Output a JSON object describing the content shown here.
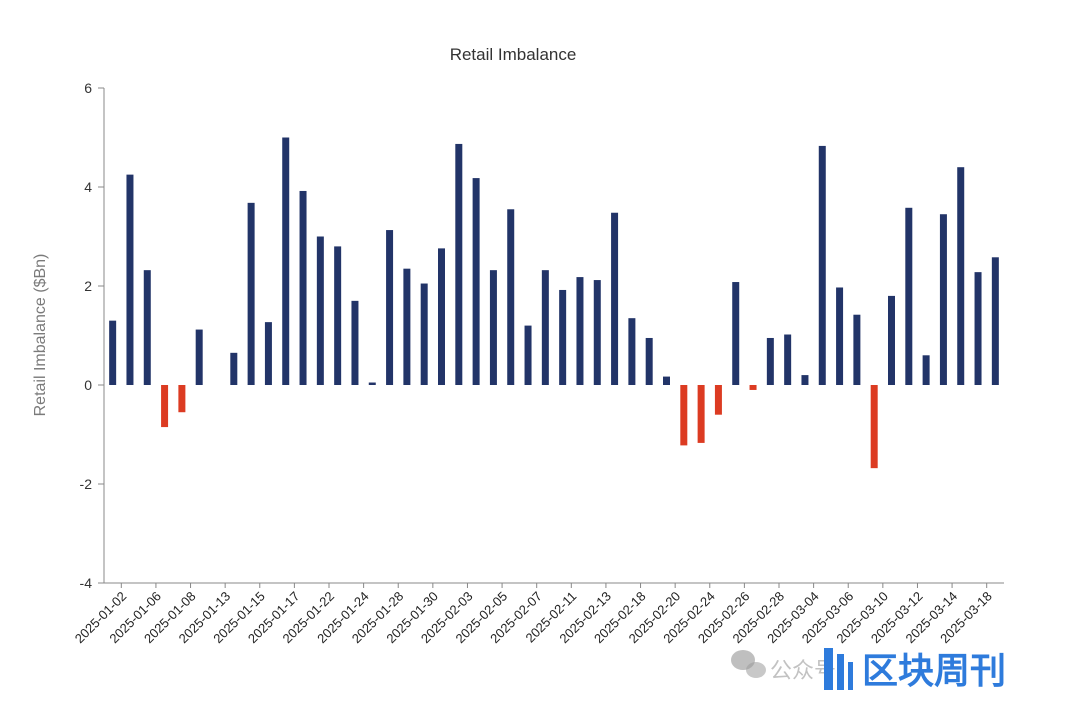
{
  "chart_data": {
    "type": "bar",
    "title": "Retail Imbalance",
    "xlabel": "",
    "ylabel": "Retail Imbalance ($Bn)",
    "ylim": [
      -4,
      6
    ],
    "yticks": [
      -4,
      -2,
      0,
      2,
      4,
      6
    ],
    "grid": false,
    "legend": "none",
    "tick_labels": [
      "2025-01-02",
      "2025-01-06",
      "2025-01-08",
      "2025-01-13",
      "2025-01-15",
      "2025-01-17",
      "2025-01-22",
      "2025-01-24",
      "2025-01-28",
      "2025-01-30",
      "2025-02-03",
      "2025-02-05",
      "2025-02-07",
      "2025-02-11",
      "2025-02-13",
      "2025-02-18",
      "2025-02-20",
      "2025-02-24",
      "2025-02-26",
      "2025-02-28",
      "2025-03-04",
      "2025-03-06",
      "2025-03-10",
      "2025-03-12",
      "2025-03-14",
      "2025-03-18"
    ],
    "values": [
      1.3,
      4.25,
      2.32,
      -0.85,
      -0.55,
      1.12,
      0.0,
      0.65,
      3.68,
      1.27,
      5.0,
      3.92,
      3.0,
      2.8,
      1.7,
      0.05,
      3.13,
      2.35,
      2.05,
      2.76,
      4.87,
      4.18,
      2.32,
      3.55,
      1.2,
      2.32,
      1.92,
      2.18,
      2.12,
      3.48,
      1.35,
      0.95,
      0.17,
      -1.22,
      -1.17,
      -0.6,
      2.08,
      -0.1,
      0.95,
      1.02,
      0.2,
      4.83,
      1.97,
      1.42,
      -1.68,
      1.8,
      3.58,
      0.6,
      3.45,
      4.4,
      2.28,
      2.58
    ],
    "colors": {
      "positive": "#223468",
      "negative": "#dc3b22"
    }
  },
  "watermark": {
    "text_left": "公众号",
    "text_right": "区块周刊"
  }
}
